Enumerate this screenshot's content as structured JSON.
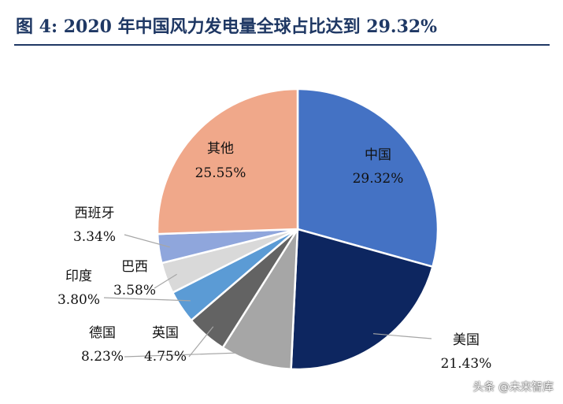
{
  "title": "图 4:  2020 年中国风力发电量全球占比达到 29.32%",
  "watermark": "头条 @未来智库",
  "chart_data": {
    "type": "pie",
    "title": "图 4:  2020 年中国风力发电量全球占比达到 29.32%",
    "slices": [
      {
        "label": "中国",
        "value": 29.32,
        "value_label": "29.32%",
        "color": "#4472c4"
      },
      {
        "label": "美国",
        "value": 21.43,
        "value_label": "21.43%",
        "color": "#0d2660"
      },
      {
        "label": "德国",
        "value": 8.23,
        "value_label": "8.23%",
        "color": "#a6a6a6"
      },
      {
        "label": "英国",
        "value": 4.75,
        "value_label": "4.75%",
        "color": "#636363"
      },
      {
        "label": "印度",
        "value": 3.8,
        "value_label": "3.80%",
        "color": "#5b9bd5"
      },
      {
        "label": "巴西",
        "value": 3.58,
        "value_label": "3.58%",
        "color": "#d9d9d9"
      },
      {
        "label": "西班牙",
        "value": 3.34,
        "value_label": "3.34%",
        "color": "#8fa6dc"
      },
      {
        "label": "其他",
        "value": 25.55,
        "value_label": "25.55%",
        "color": "#f0a88a"
      }
    ]
  }
}
